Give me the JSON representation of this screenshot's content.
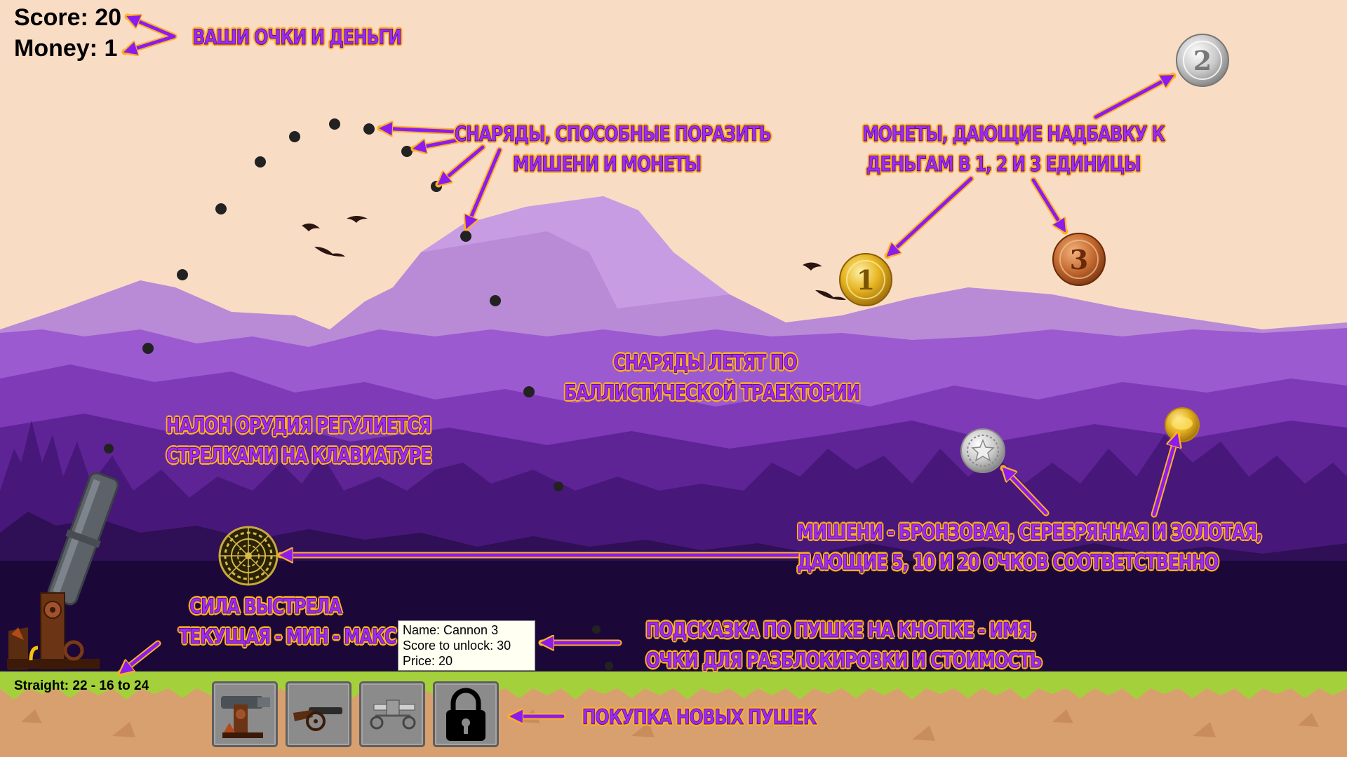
{
  "hud": {
    "score_text": "Score: 20",
    "money_text": "Money: 1"
  },
  "power_readout": "Straight: 22 - 16 to 24",
  "tooltip": {
    "name": "Name: Cannon 3",
    "score_to_unlock": "Score to unlock: 30",
    "price": "Price: 20"
  },
  "shop": {
    "buttons": [
      {
        "icon": "cannon-1-icon",
        "locked": false
      },
      {
        "icon": "cannon-2-icon",
        "locked": false
      },
      {
        "icon": "cannon-3-icon",
        "locked": false
      },
      {
        "icon": "padlock-icon",
        "locked": true
      }
    ]
  },
  "annotations": {
    "score_money": "ВАШИ ОЧКИ И ДЕНЬГИ",
    "projectiles_l1": "СНАРЯДЫ, СПОСОБНЫЕ ПОРАЗИТЬ",
    "projectiles_l2": "МИШЕНИ И МОНЕТЫ",
    "coins_l1": "МОНЕТЫ, ДАЮЩИЕ НАДБАВКУ К",
    "coins_l2": "ДЕНЬГАМ В 1, 2 И 3 ЕДИНИЦЫ",
    "ballistic_l1": "СНАРЯДЫ ЛЕТЯТ ПО",
    "ballistic_l2": "БАЛЛИСТИЧЕСКОЙ ТРАЕКТОРИИ",
    "tilt_l1": "НАЛОН ОРУДИЯ РЕГУЛИЕТСЯ",
    "tilt_l2": "СТРЕЛКАМИ НА КЛАВИАТУРЕ",
    "targets_l1": "МИШЕНИ - БРОНЗОВАЯ, СЕРЕБРЯННАЯ И ЗОЛОТАЯ,",
    "targets_l2": "ДАЮЩИЕ 5, 10 И 20 ОЧКОВ СООТВЕТСТВЕННО",
    "power_l1": "СИЛА ВЫСТРЕЛА",
    "power_l2": "ТЕКУЩАЯ - МИН - МАКС",
    "hint_l1": "ПОДСКАЗКА ПО ПУШКЕ НА КНОПКЕ - ИМЯ,",
    "hint_l2": "ОЧКИ ДЛЯ РАЗБЛОКИРОВКИ И СТОИМОСТЬ",
    "shop": "ПОКУПКА НОВЫХ ПУШЕК"
  },
  "coins": [
    {
      "value": "1",
      "kind": "gold"
    },
    {
      "value": "2",
      "kind": "silver"
    },
    {
      "value": "3",
      "kind": "bronze"
    }
  ],
  "targets": [
    "bronze",
    "silver",
    "gold"
  ],
  "colors": {
    "sky": "#f9dcc4",
    "annotation_text": "#9b2cf0",
    "annotation_outline": "#ffb020",
    "arrow": "#8b1cf0",
    "grass": "#a4d13b",
    "dirt": "#d9a06f"
  }
}
